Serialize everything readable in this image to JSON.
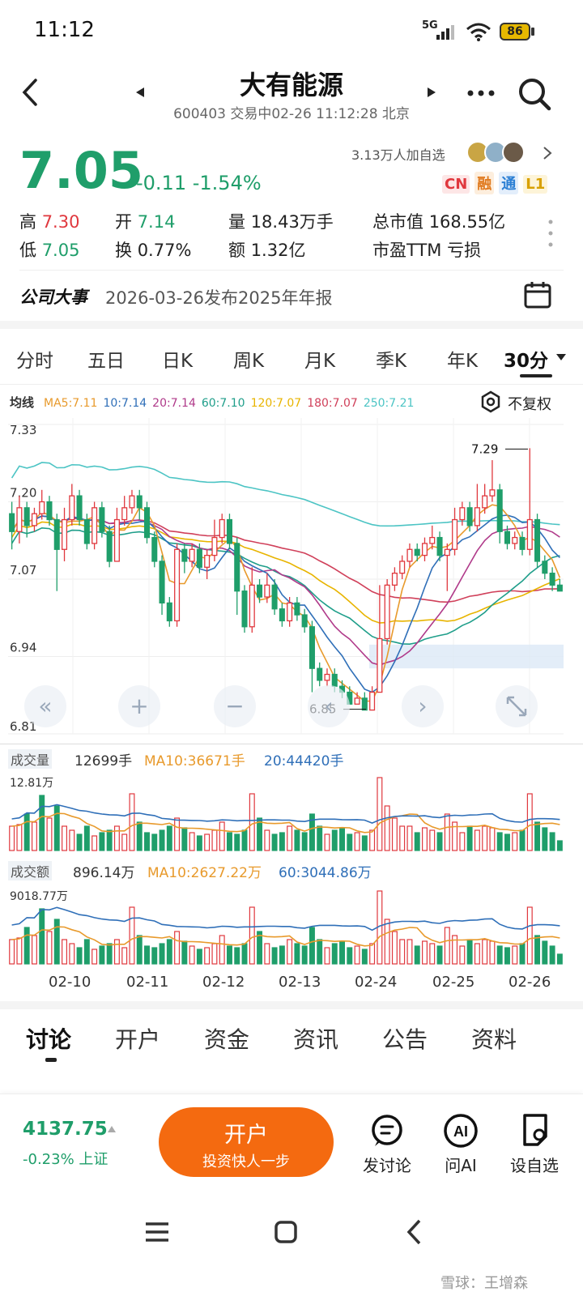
{
  "status_bar": {
    "time": "11:12",
    "network": "5G",
    "battery": "86"
  },
  "header": {
    "title": "大有能源",
    "subtitle": "600403 交易中02-26 11:12:28 北京",
    "watchers": "3.13万人加自选"
  },
  "quote": {
    "price": "7.05",
    "change": "-0.11",
    "change_pct": "-1.54%",
    "tags": [
      "CN",
      "融",
      "通",
      "L1"
    ],
    "stats": [
      {
        "label": "高",
        "value": "7.30",
        "color": "#e0383e"
      },
      {
        "label": "开",
        "value": "7.14",
        "color": "#1f9e6a"
      },
      {
        "label": "量",
        "value": "18.43万手",
        "color": "#222"
      },
      {
        "label": "总市值",
        "value": "168.55亿",
        "color": "#222"
      },
      {
        "label": "低",
        "value": "7.05",
        "color": "#1f9e6a"
      },
      {
        "label": "换",
        "value": "0.77%",
        "color": "#222"
      },
      {
        "label": "额",
        "value": "1.32亿",
        "color": "#222"
      },
      {
        "label": "市盈TTM",
        "value": "亏损",
        "color": "#222"
      }
    ]
  },
  "event": {
    "label": "公司大事",
    "text": "2026-03-26发布2025年年报"
  },
  "chart_tabs": [
    "分时",
    "五日",
    "日K",
    "周K",
    "月K",
    "季K",
    "年K",
    "30分"
  ],
  "chart_options": {
    "fuquan": "不复权"
  },
  "ma_legend": {
    "label": "均线",
    "items": [
      {
        "text": "MA5:7.11",
        "color": "#e89a2c"
      },
      {
        "text": "10:7.14",
        "color": "#2f6fb8"
      },
      {
        "text": "20:7.14",
        "color": "#b03a8a"
      },
      {
        "text": "60:7.10",
        "color": "#1f9e8a"
      },
      {
        "text": "120:7.07",
        "color": "#e8b400"
      },
      {
        "text": "180:7.07",
        "color": "#d0405a"
      },
      {
        "text": "250:7.21",
        "color": "#4cc4c4"
      }
    ]
  },
  "chart_data": {
    "type": "candlestick",
    "y_ticks": [
      "7.33",
      "7.20",
      "7.07",
      "6.94",
      "6.81"
    ],
    "ylim": [
      6.81,
      7.33
    ],
    "high_label": "7.29",
    "low_label": "6.85",
    "x_ticks": [
      "02-10",
      "02-11",
      "02-12",
      "02-13",
      "02-24",
      "02-25",
      "02-26"
    ],
    "candles": [
      [
        7.18,
        7.15,
        7.2,
        7.12
      ],
      [
        7.15,
        7.19,
        7.21,
        7.13
      ],
      [
        7.19,
        7.16,
        7.2,
        7.14
      ],
      [
        7.16,
        7.18,
        7.19,
        7.15
      ],
      [
        7.18,
        7.2,
        7.22,
        7.17
      ],
      [
        7.2,
        7.17,
        7.21,
        7.16
      ],
      [
        7.17,
        7.12,
        7.18,
        7.05
      ],
      [
        7.12,
        7.17,
        7.19,
        7.1
      ],
      [
        7.17,
        7.21,
        7.23,
        7.16
      ],
      [
        7.21,
        7.17,
        7.22,
        7.16
      ],
      [
        7.17,
        7.13,
        7.18,
        7.12
      ],
      [
        7.13,
        7.19,
        7.2,
        7.12
      ],
      [
        7.19,
        7.15,
        7.2,
        7.14
      ],
      [
        7.15,
        7.1,
        7.16,
        7.09
      ],
      [
        7.1,
        7.17,
        7.19,
        7.1
      ],
      [
        7.17,
        7.19,
        7.21,
        7.16
      ],
      [
        7.19,
        7.21,
        7.22,
        7.18
      ],
      [
        7.21,
        7.19,
        7.22,
        7.17
      ],
      [
        7.19,
        7.14,
        7.2,
        7.13
      ],
      [
        7.14,
        7.1,
        7.15,
        7.09
      ],
      [
        7.1,
        7.03,
        7.11,
        7.01
      ],
      [
        7.03,
        7.0,
        7.04,
        6.99
      ],
      [
        7.0,
        7.12,
        7.13,
        6.99
      ],
      [
        7.12,
        7.1,
        7.13,
        7.08
      ],
      [
        7.1,
        7.12,
        7.13,
        7.09
      ],
      [
        7.12,
        7.09,
        7.13,
        7.08
      ],
      [
        7.09,
        7.11,
        7.12,
        7.07
      ],
      [
        7.11,
        7.14,
        7.17,
        7.1
      ],
      [
        7.14,
        7.17,
        7.18,
        7.13
      ],
      [
        7.17,
        7.13,
        7.18,
        7.12
      ],
      [
        7.13,
        7.05,
        7.14,
        7.01
      ],
      [
        7.05,
        6.99,
        7.06,
        6.98
      ],
      [
        6.99,
        7.06,
        7.09,
        6.98
      ],
      [
        7.06,
        7.04,
        7.07,
        7.03
      ],
      [
        7.04,
        7.06,
        7.08,
        7.03
      ],
      [
        7.06,
        7.02,
        7.07,
        7.01
      ],
      [
        7.02,
        7.0,
        7.03,
        6.99
      ],
      [
        7.0,
        7.03,
        7.04,
        6.99
      ],
      [
        7.03,
        7.01,
        7.04,
        7.0
      ],
      [
        7.01,
        6.99,
        7.02,
        6.98
      ],
      [
        6.99,
        6.92,
        7.0,
        6.88
      ],
      [
        6.92,
        6.9,
        6.93,
        6.89
      ],
      [
        6.9,
        6.91,
        6.92,
        6.89
      ],
      [
        6.91,
        6.89,
        6.92,
        6.88
      ],
      [
        6.89,
        6.88,
        6.9,
        6.87
      ],
      [
        6.88,
        6.86,
        6.89,
        6.86
      ],
      [
        6.86,
        6.87,
        6.88,
        6.86
      ],
      [
        6.87,
        6.85,
        6.88,
        6.85
      ],
      [
        6.85,
        6.88,
        6.89,
        6.85
      ],
      [
        6.88,
        6.97,
        7.06,
        6.88
      ],
      [
        6.97,
        7.06,
        7.07,
        6.96
      ],
      [
        7.06,
        7.08,
        7.09,
        7.05
      ],
      [
        7.08,
        7.1,
        7.11,
        7.07
      ],
      [
        7.1,
        7.12,
        7.13,
        7.09
      ],
      [
        7.12,
        7.11,
        7.13,
        7.1
      ],
      [
        7.11,
        7.13,
        7.14,
        7.1
      ],
      [
        7.13,
        7.14,
        7.16,
        7.12
      ],
      [
        7.14,
        7.11,
        7.15,
        7.1
      ],
      [
        7.11,
        7.12,
        7.13,
        7.05
      ],
      [
        7.12,
        7.17,
        7.19,
        7.11
      ],
      [
        7.17,
        7.19,
        7.2,
        7.16
      ],
      [
        7.19,
        7.16,
        7.2,
        7.15
      ],
      [
        7.16,
        7.19,
        7.23,
        7.15
      ],
      [
        7.19,
        7.21,
        7.23,
        7.18
      ],
      [
        7.21,
        7.22,
        7.27,
        7.2
      ],
      [
        7.22,
        7.15,
        7.23,
        7.13
      ],
      [
        7.15,
        7.13,
        7.16,
        7.12
      ],
      [
        7.13,
        7.14,
        7.15,
        7.12
      ],
      [
        7.14,
        7.12,
        7.15,
        7.11
      ],
      [
        7.12,
        7.17,
        7.29,
        7.11
      ],
      [
        7.17,
        7.1,
        7.18,
        7.09
      ],
      [
        7.1,
        7.08,
        7.11,
        7.07
      ],
      [
        7.08,
        7.06,
        7.09,
        7.05
      ],
      [
        7.06,
        7.05,
        7.07,
        7.05
      ]
    ]
  },
  "volume": {
    "label": "成交量",
    "value": "12699手",
    "ma10": "MA10:36671手",
    "ma20": "20:44420手",
    "max_label": "12.81万",
    "bars": [
      0.3,
      0.32,
      0.45,
      0.35,
      0.68,
      0.4,
      0.55,
      0.3,
      0.25,
      0.2,
      0.3,
      0.18,
      0.22,
      0.25,
      0.3,
      0.2,
      0.7,
      0.35,
      0.22,
      0.2,
      0.25,
      0.3,
      0.4,
      0.28,
      0.22,
      0.18,
      0.2,
      0.25,
      0.35,
      0.22,
      0.2,
      0.25,
      0.7,
      0.4,
      0.25,
      0.2,
      0.22,
      0.3,
      0.25,
      0.22,
      0.45,
      0.3,
      0.2,
      0.25,
      0.28,
      0.2,
      0.22,
      0.18,
      0.25,
      0.9,
      0.55,
      0.4,
      0.3,
      0.3,
      0.22,
      0.28,
      0.25,
      0.22,
      0.45,
      0.35,
      0.22,
      0.3,
      0.25,
      0.3,
      0.28,
      0.22,
      0.2,
      0.22,
      0.25,
      0.7,
      0.35,
      0.28,
      0.22,
      0.12
    ],
    "ups": [
      1,
      1,
      0,
      1,
      0,
      1,
      0,
      1,
      1,
      0,
      0,
      1,
      0,
      0,
      1,
      1,
      1,
      0,
      0,
      0,
      0,
      0,
      1,
      0,
      1,
      0,
      1,
      1,
      1,
      0,
      0,
      0,
      1,
      0,
      1,
      0,
      0,
      1,
      0,
      0,
      0,
      0,
      1,
      0,
      0,
      0,
      1,
      0,
      1,
      1,
      1,
      1,
      1,
      1,
      0,
      1,
      1,
      0,
      1,
      1,
      1,
      0,
      1,
      1,
      1,
      0,
      0,
      1,
      0,
      1,
      0,
      0,
      0,
      0
    ]
  },
  "amount": {
    "label": "成交额",
    "value": "896.14万",
    "ma10": "MA10:2627.22万",
    "ma60": "60:3044.86万",
    "max_label": "9018.77万"
  },
  "bottom_tabs": [
    "讨论",
    "开户",
    "资金",
    "资讯",
    "公告",
    "资料"
  ],
  "index": {
    "value": "4137.75",
    "change": "-0.23% 上证"
  },
  "open_account": {
    "title": "开户",
    "subtitle": "投资快人一步"
  },
  "actions": [
    {
      "label": "发讨论",
      "icon": "comment-icon"
    },
    {
      "label": "问AI",
      "icon": "ai-icon"
    },
    {
      "label": "设自选",
      "icon": "add-watchlist-icon"
    }
  ],
  "watermark": "雪球：王增森"
}
